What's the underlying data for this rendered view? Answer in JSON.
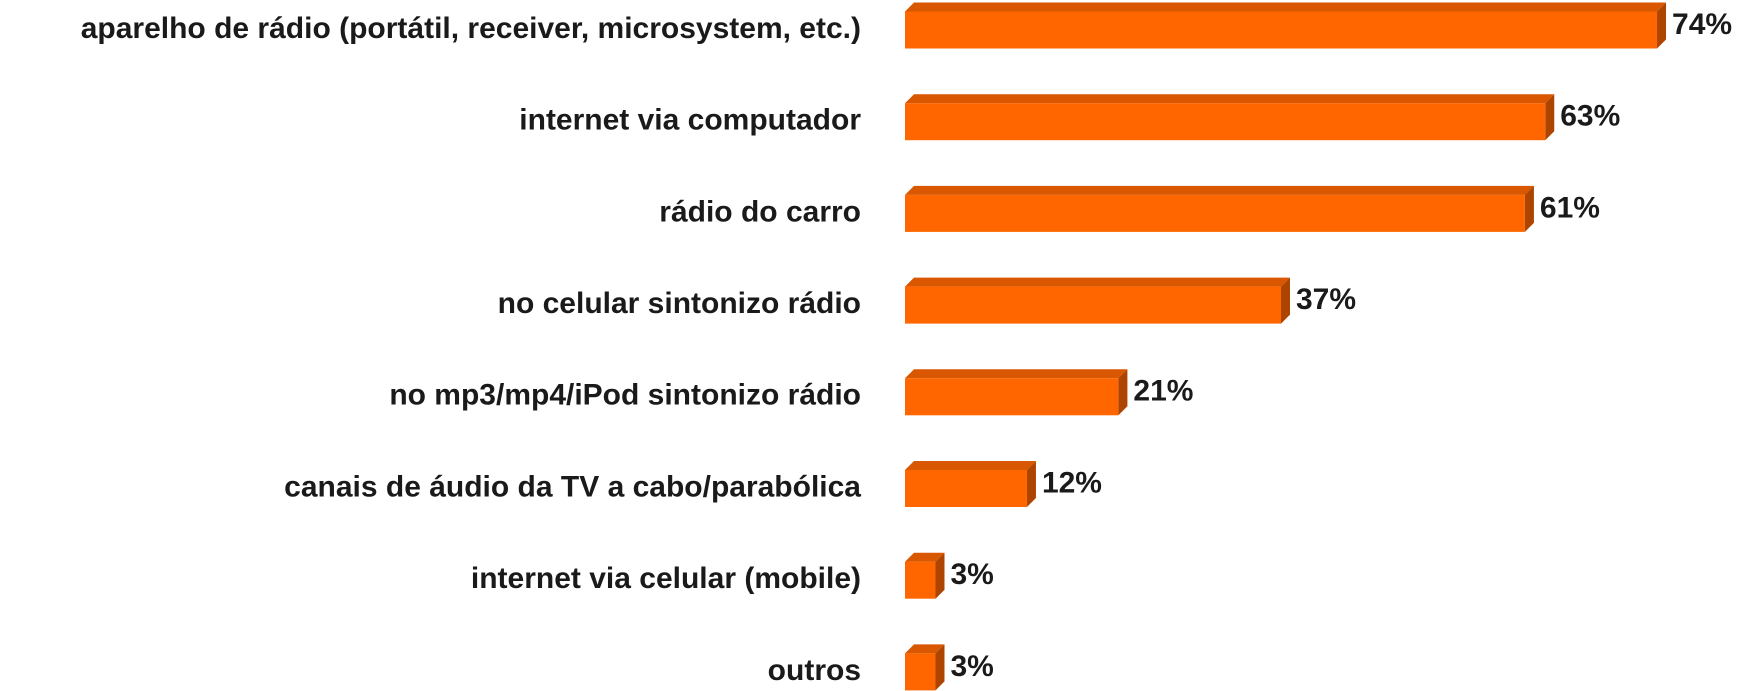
{
  "chart_data": {
    "type": "bar",
    "orientation": "horizontal",
    "categories": [
      "aparelho de rádio (portátil, receiver, microsystem, etc.)",
      "internet via computador",
      "rádio do carro",
      "no celular sintonizo rádio",
      "no mp3/mp4/iPod sintonizo rádio",
      "canais de áudio da TV a cabo/parabólica",
      "internet via celular (mobile)",
      "outros"
    ],
    "values": [
      74,
      63,
      61,
      37,
      21,
      12,
      3,
      3
    ],
    "value_labels": [
      "74%",
      "63%",
      "61%",
      "37%",
      "21%",
      "12%",
      "3%",
      "3%"
    ],
    "color": "#ff6600",
    "xlim": [
      0,
      80
    ]
  }
}
